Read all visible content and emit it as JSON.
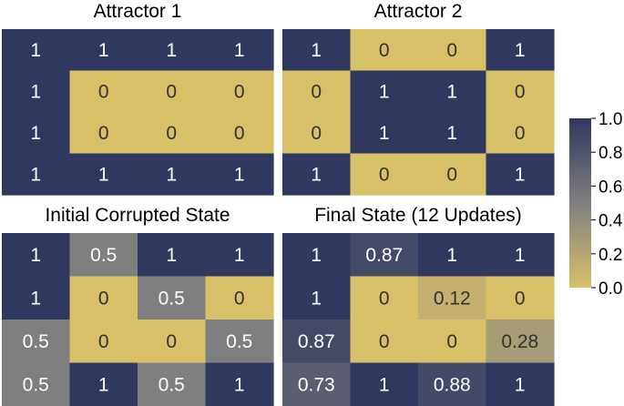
{
  "figure": {
    "colormap": [
      "#d8c068",
      "#7f7f7f",
      "#30385f"
    ],
    "colorbar": {
      "min": 0.0,
      "max": 1.0,
      "ticks": [
        "0.0",
        "0.2",
        "0.4",
        "0.6",
        "0.8",
        "1.0"
      ]
    },
    "text_light": "#ffffff",
    "text_dark": "#333333"
  },
  "chart_data": [
    {
      "type": "heatmap",
      "title": "Attractor 1",
      "values": [
        [
          1,
          1,
          1,
          1
        ],
        [
          1,
          0,
          0,
          0
        ],
        [
          1,
          0,
          0,
          0
        ],
        [
          1,
          1,
          1,
          1
        ]
      ],
      "labels": [
        [
          "1",
          "1",
          "1",
          "1"
        ],
        [
          "1",
          "0",
          "0",
          "0"
        ],
        [
          "1",
          "0",
          "0",
          "0"
        ],
        [
          "1",
          "1",
          "1",
          "1"
        ]
      ]
    },
    {
      "type": "heatmap",
      "title": "Attractor 2",
      "values": [
        [
          1,
          0,
          0,
          1
        ],
        [
          0,
          1,
          1,
          0
        ],
        [
          0,
          1,
          1,
          0
        ],
        [
          1,
          0,
          0,
          1
        ]
      ],
      "labels": [
        [
          "1",
          "0",
          "0",
          "1"
        ],
        [
          "0",
          "1",
          "1",
          "0"
        ],
        [
          "0",
          "1",
          "1",
          "0"
        ],
        [
          "1",
          "0",
          "0",
          "1"
        ]
      ]
    },
    {
      "type": "heatmap",
      "title": "Initial Corrupted State",
      "values": [
        [
          1,
          0.5,
          1,
          1
        ],
        [
          1,
          0,
          0.5,
          0
        ],
        [
          0.5,
          0,
          0,
          0.5
        ],
        [
          0.5,
          1,
          0.5,
          1
        ]
      ],
      "labels": [
        [
          "1",
          "0.5",
          "1",
          "1"
        ],
        [
          "1",
          "0",
          "0.5",
          "0"
        ],
        [
          "0.5",
          "0",
          "0",
          "0.5"
        ],
        [
          "0.5",
          "1",
          "0.5",
          "1"
        ]
      ]
    },
    {
      "type": "heatmap",
      "title": "Final State (12 Updates)",
      "values": [
        [
          1,
          0.87,
          1,
          1
        ],
        [
          1,
          0,
          0.12,
          0
        ],
        [
          0.87,
          0,
          0,
          0.28
        ],
        [
          0.73,
          1,
          0.88,
          1
        ]
      ],
      "labels": [
        [
          "1",
          "0.87",
          "1",
          "1"
        ],
        [
          "1",
          "0",
          "0.12",
          "0"
        ],
        [
          "0.87",
          "0",
          "0",
          "0.28"
        ],
        [
          "0.73",
          "1",
          "0.88",
          "1"
        ]
      ]
    }
  ]
}
